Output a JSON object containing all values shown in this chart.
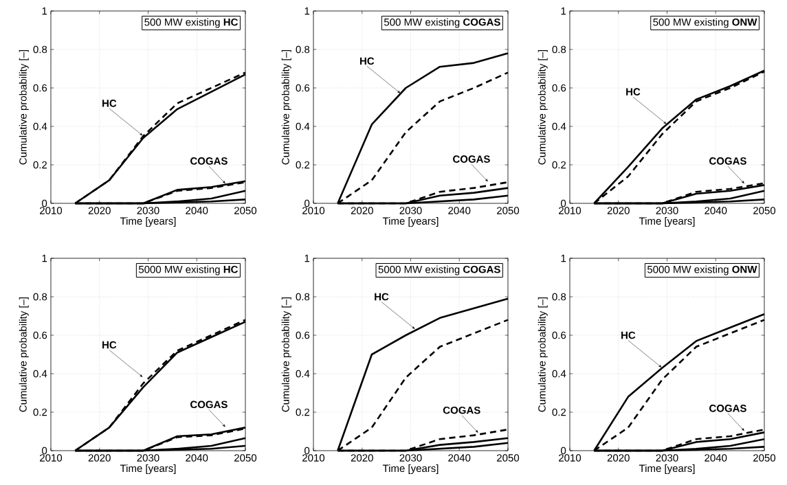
{
  "chart_data": [
    {
      "type": "line",
      "title": "500 MW existing **HC**",
      "xlabel": "Time [years]",
      "ylabel": "Cumulative probability [–]",
      "x": [
        2015,
        2022,
        2029,
        2036,
        2043,
        2050
      ],
      "xlim": [
        2010,
        2050
      ],
      "ylim": [
        0,
        1
      ],
      "xticks": [
        2010,
        2020,
        2030,
        2040,
        2050
      ],
      "yticks": [
        0,
        0.2,
        0.4,
        0.6,
        0.8,
        1
      ],
      "grid": true,
      "series": [
        {
          "color": "#000000",
          "line_style": "solid",
          "values": [
            0,
            0.12,
            0.34,
            0.49,
            0.58,
            0.67
          ]
        },
        {
          "color": "#000000",
          "line_style": "dashed",
          "values": [
            0,
            0.12,
            0.35,
            0.52,
            0.6,
            0.68
          ]
        },
        {
          "color": "#000000",
          "line_style": "solid",
          "values": [
            0,
            0,
            0,
            0.07,
            0.085,
            0.115
          ]
        },
        {
          "color": "#000000",
          "line_style": "dashed",
          "values": [
            0,
            0,
            0,
            0.065,
            0.08,
            0.11
          ]
        },
        {
          "color": "#000000",
          "line_style": "solid",
          "values": [
            0,
            0,
            0,
            0.01,
            0.025,
            0.065
          ]
        },
        {
          "color": "#000000",
          "line_style": "solid",
          "values": [
            0,
            0,
            0,
            0.005,
            0.01,
            0.02
          ]
        }
      ],
      "annotations": [
        {
          "text": "HC",
          "x": 2029,
          "y": 0.35
        },
        {
          "text": "COGAS",
          "x": 2046,
          "y": 0.1
        }
      ]
    },
    {
      "type": "line",
      "title": "500 MW existing **COGAS**",
      "xlabel": "Time [years]",
      "ylabel": "Cumulative probability [–]",
      "x": [
        2015,
        2022,
        2029,
        2036,
        2043,
        2050
      ],
      "xlim": [
        2010,
        2050
      ],
      "ylim": [
        0,
        1
      ],
      "xticks": [
        2010,
        2020,
        2030,
        2040,
        2050
      ],
      "yticks": [
        0,
        0.2,
        0.4,
        0.6,
        0.8,
        1
      ],
      "grid": true,
      "series": [
        {
          "color": "#000000",
          "line_style": "solid",
          "values": [
            0,
            0.41,
            0.6,
            0.71,
            0.73,
            0.78
          ]
        },
        {
          "color": "#000000",
          "line_style": "dashed",
          "values": [
            0,
            0.12,
            0.37,
            0.53,
            0.6,
            0.68
          ]
        },
        {
          "color": "#000000",
          "line_style": "solid",
          "values": [
            0,
            0,
            0,
            0.04,
            0.055,
            0.08
          ]
        },
        {
          "color": "#000000",
          "line_style": "dashed",
          "values": [
            0,
            0,
            0,
            0.06,
            0.08,
            0.11
          ]
        },
        {
          "color": "#000000",
          "line_style": "solid",
          "values": [
            0,
            0,
            0,
            0.01,
            0.02,
            0.04
          ]
        }
      ],
      "annotations": [
        {
          "text": "HC",
          "x": 2028,
          "y": 0.57
        },
        {
          "text": "COGAS",
          "x": 2046,
          "y": 0.11
        }
      ]
    },
    {
      "type": "line",
      "title": "500 MW existing **ONW**",
      "xlabel": "Time [years]",
      "ylabel": "Cumulative probability [–]",
      "x": [
        2015,
        2022,
        2029,
        2036,
        2043,
        2050
      ],
      "xlim": [
        2010,
        2050
      ],
      "ylim": [
        0,
        1
      ],
      "xticks": [
        2010,
        2020,
        2030,
        2040,
        2050
      ],
      "yticks": [
        0,
        0.2,
        0.4,
        0.6,
        0.8,
        1
      ],
      "grid": true,
      "series": [
        {
          "color": "#000000",
          "line_style": "solid",
          "values": [
            0,
            0.19,
            0.39,
            0.54,
            0.61,
            0.69
          ]
        },
        {
          "color": "#000000",
          "line_style": "dashed",
          "values": [
            0,
            0.14,
            0.36,
            0.53,
            0.6,
            0.685
          ]
        },
        {
          "color": "#000000",
          "line_style": "solid",
          "values": [
            0,
            0,
            0,
            0.05,
            0.065,
            0.095
          ]
        },
        {
          "color": "#000000",
          "line_style": "dashed",
          "values": [
            0,
            0,
            0,
            0.06,
            0.075,
            0.105
          ]
        },
        {
          "color": "#000000",
          "line_style": "solid",
          "values": [
            0,
            0,
            0,
            0.01,
            0.025,
            0.065
          ]
        },
        {
          "color": "#000000",
          "line_style": "solid",
          "values": [
            0,
            0,
            0,
            0.005,
            0.01,
            0.02
          ]
        }
      ],
      "annotations": [
        {
          "text": "HC",
          "x": 2030,
          "y": 0.41
        },
        {
          "text": "COGAS",
          "x": 2046,
          "y": 0.1
        }
      ]
    },
    {
      "type": "line",
      "title": "5000 MW existing **HC**",
      "xlabel": "Time [years]",
      "ylabel": "Cumulative probability [–]",
      "x": [
        2015,
        2022,
        2029,
        2036,
        2043,
        2050
      ],
      "xlim": [
        2010,
        2050
      ],
      "ylim": [
        0,
        1
      ],
      "xticks": [
        2010,
        2020,
        2030,
        2040,
        2050
      ],
      "yticks": [
        0,
        0.2,
        0.4,
        0.6,
        0.8,
        1
      ],
      "grid": true,
      "series": [
        {
          "color": "#000000",
          "line_style": "solid",
          "values": [
            0,
            0.12,
            0.33,
            0.51,
            0.59,
            0.67
          ]
        },
        {
          "color": "#000000",
          "line_style": "dashed",
          "values": [
            0,
            0.12,
            0.35,
            0.52,
            0.6,
            0.68
          ]
        },
        {
          "color": "#000000",
          "line_style": "solid",
          "values": [
            0,
            0,
            0,
            0.075,
            0.085,
            0.12
          ]
        },
        {
          "color": "#000000",
          "line_style": "dashed",
          "values": [
            0,
            0,
            0,
            0.07,
            0.08,
            0.115
          ]
        },
        {
          "color": "#000000",
          "line_style": "solid",
          "values": [
            0,
            0,
            0,
            0.01,
            0.025,
            0.065
          ]
        },
        {
          "color": "#000000",
          "line_style": "solid",
          "values": [
            0,
            0,
            0,
            0.005,
            0.01,
            0.025
          ]
        }
      ],
      "annotations": [
        {
          "text": "HC",
          "x": 2029,
          "y": 0.38
        },
        {
          "text": "COGAS",
          "x": 2046,
          "y": 0.12
        }
      ]
    },
    {
      "type": "line",
      "title": "5000 MW existing **COGAS**",
      "xlabel": "Time [years]",
      "ylabel": "Cumulative probability [–]",
      "x": [
        2015,
        2022,
        2029,
        2036,
        2043,
        2050
      ],
      "xlim": [
        2010,
        2050
      ],
      "ylim": [
        0,
        1
      ],
      "xticks": [
        2010,
        2020,
        2030,
        2040,
        2050
      ],
      "yticks": [
        0,
        0.2,
        0.4,
        0.6,
        0.8,
        1
      ],
      "grid": true,
      "series": [
        {
          "color": "#000000",
          "line_style": "solid",
          "values": [
            0,
            0.5,
            0.6,
            0.69,
            0.74,
            0.79
          ]
        },
        {
          "color": "#000000",
          "line_style": "dashed",
          "values": [
            0,
            0.12,
            0.38,
            0.54,
            0.61,
            0.68
          ]
        },
        {
          "color": "#000000",
          "line_style": "solid",
          "values": [
            0,
            0,
            0,
            0.03,
            0.045,
            0.065
          ]
        },
        {
          "color": "#000000",
          "line_style": "dashed",
          "values": [
            0,
            0,
            0,
            0.06,
            0.08,
            0.11
          ]
        },
        {
          "color": "#000000",
          "line_style": "solid",
          "values": [
            0,
            0,
            0,
            0.01,
            0.02,
            0.04
          ]
        }
      ],
      "annotations": [
        {
          "text": "HC",
          "x": 2031,
          "y": 0.63
        },
        {
          "text": "COGAS",
          "x": 2044,
          "y": 0.09
        }
      ]
    },
    {
      "type": "line",
      "title": "5000 MW existing **ONW**",
      "xlabel": "Time [years]",
      "ylabel": "Cumulative probability [–]",
      "x": [
        2015,
        2022,
        2029,
        2036,
        2043,
        2050
      ],
      "xlim": [
        2010,
        2050
      ],
      "ylim": [
        0,
        1
      ],
      "xticks": [
        2010,
        2020,
        2030,
        2040,
        2050
      ],
      "yticks": [
        0,
        0.2,
        0.4,
        0.6,
        0.8,
        1
      ],
      "grid": true,
      "series": [
        {
          "color": "#000000",
          "line_style": "solid",
          "values": [
            0,
            0.28,
            0.43,
            0.57,
            0.64,
            0.71
          ]
        },
        {
          "color": "#000000",
          "line_style": "dashed",
          "values": [
            0,
            0.12,
            0.37,
            0.54,
            0.61,
            0.68
          ]
        },
        {
          "color": "#000000",
          "line_style": "solid",
          "values": [
            0,
            0,
            0,
            0.045,
            0.06,
            0.095
          ]
        },
        {
          "color": "#000000",
          "line_style": "dashed",
          "values": [
            0,
            0,
            0,
            0.06,
            0.075,
            0.11
          ]
        },
        {
          "color": "#000000",
          "line_style": "solid",
          "values": [
            0,
            0,
            0,
            0.01,
            0.025,
            0.06
          ]
        },
        {
          "color": "#000000",
          "line_style": "solid",
          "values": [
            0,
            0,
            0,
            0.005,
            0.01,
            0.02
          ]
        }
      ],
      "annotations": [
        {
          "text": "HC",
          "x": 2029,
          "y": 0.43
        },
        {
          "text": "COGAS",
          "x": 2046,
          "y": 0.1
        }
      ]
    }
  ]
}
